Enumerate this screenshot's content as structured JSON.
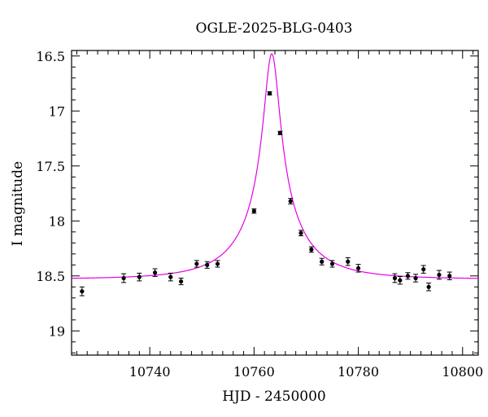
{
  "chart_data": {
    "type": "scatter",
    "title": "OGLE-2025-BLG-0403",
    "xlabel": "HJD - 2450000",
    "ylabel": "I magnitude",
    "xlim": [
      10725,
      10803
    ],
    "ylim": [
      19.22,
      16.45
    ],
    "y_inverted": true,
    "xticks": [
      10740,
      10760,
      10780,
      10800
    ],
    "yticks": [
      16.5,
      17,
      17.5,
      18,
      18.5,
      19
    ],
    "ytick_labels": [
      "16.5",
      "17",
      "17.5",
      "18",
      "18.5",
      "19"
    ],
    "grid": false,
    "marker_color": "#000000",
    "model_color": "#e600e6",
    "series": [
      {
        "type": "scatter_errorbar",
        "x": [
          10727.0,
          10735.0,
          10738.0,
          10741.0,
          10744.0,
          10746.0,
          10749.0,
          10751.0,
          10753.0,
          10760.0,
          10763.0,
          10765.0,
          10767.0,
          10769.0,
          10771.0,
          10773.0,
          10775.0,
          10778.0,
          10780.0,
          10787.0,
          10788.0,
          10789.5,
          10791.0,
          10792.5,
          10793.5,
          10795.5,
          10797.5
        ],
        "y": [
          18.64,
          18.52,
          18.51,
          18.47,
          18.51,
          18.55,
          18.39,
          18.4,
          18.39,
          17.91,
          16.84,
          17.2,
          17.82,
          18.11,
          18.26,
          18.37,
          18.39,
          18.37,
          18.43,
          18.52,
          18.54,
          18.5,
          18.52,
          18.44,
          18.6,
          18.49,
          18.5
        ],
        "err": [
          0.04,
          0.04,
          0.035,
          0.035,
          0.035,
          0.03,
          0.03,
          0.03,
          0.03,
          0.02,
          0.015,
          0.015,
          0.025,
          0.025,
          0.025,
          0.03,
          0.03,
          0.035,
          0.035,
          0.04,
          0.035,
          0.03,
          0.035,
          0.035,
          0.035,
          0.04,
          0.035
        ]
      },
      {
        "type": "model",
        "t0": 10763.4,
        "base_mag": 18.53,
        "peak_mag": 16.48,
        "width_days": 2.5
      }
    ]
  }
}
